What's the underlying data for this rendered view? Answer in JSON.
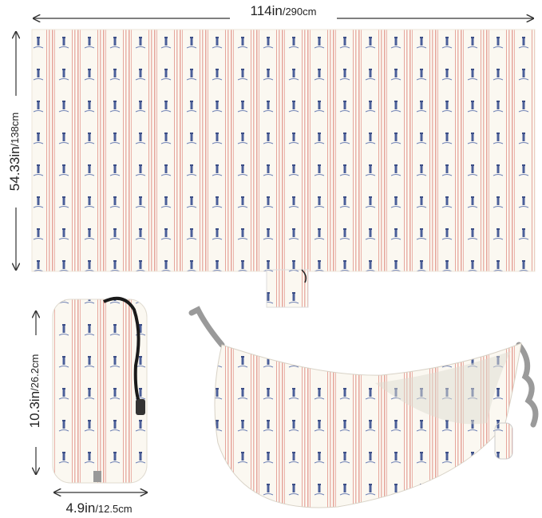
{
  "dimensions": {
    "length": {
      "main": "114in",
      "sub": "/290cm"
    },
    "width": {
      "main": "54.33in",
      "sub": "/138cm"
    },
    "bag_height": {
      "main": "10.3in",
      "sub": "/26.2cm"
    },
    "bag_diameter": {
      "main": "4.9in",
      "sub": "/12.5cm"
    }
  }
}
